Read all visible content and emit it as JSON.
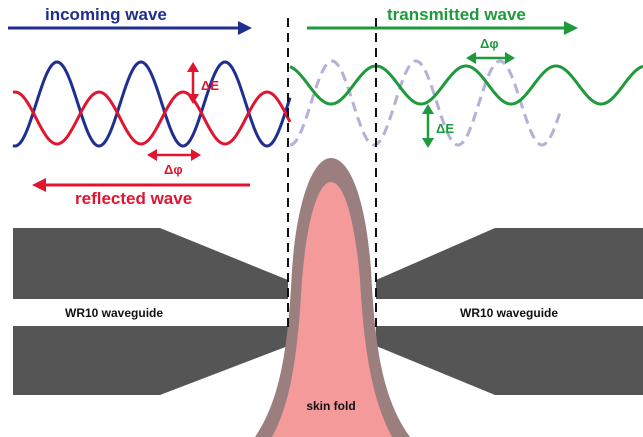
{
  "labels": {
    "incoming": "incoming wave",
    "transmitted": "transmitted wave",
    "reflected": "reflected wave",
    "waveguide_left": "WR10 waveguide",
    "waveguide_right": "WR10 waveguide",
    "skin_fold": "skin fold",
    "delta_e_left": "ΔE",
    "delta_e_right": "ΔE",
    "delta_phi_left": "Δφ",
    "delta_phi_right": "Δφ"
  },
  "colors": {
    "incoming": "#1f2f8f",
    "reflected": "#e0152f",
    "transmitted": "#1e9a3c",
    "ghost_wave": "#b4b0d8",
    "waveguide": "#555555",
    "skin_outer": "#9b7f7f",
    "skin_inner": "#f49a9a",
    "dashed": "#111111"
  }
}
